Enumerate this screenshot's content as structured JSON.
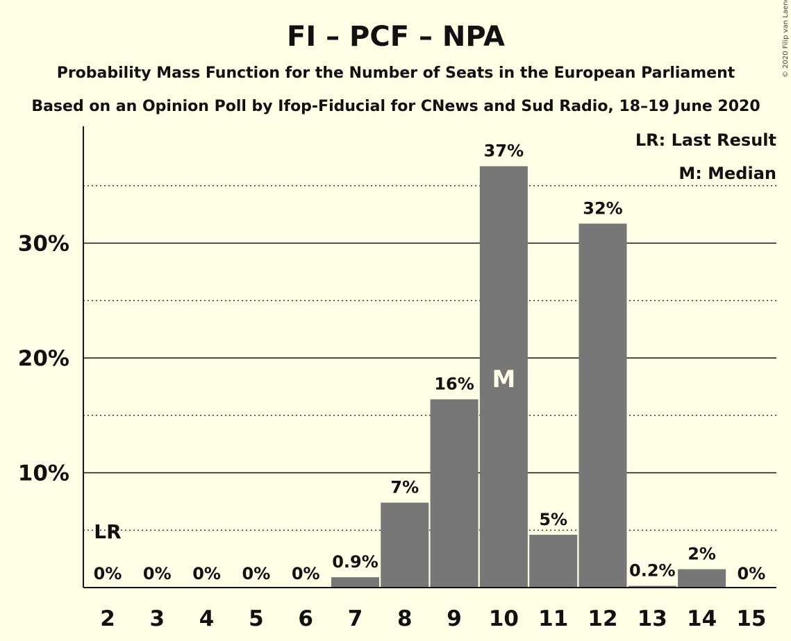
{
  "chart_data": {
    "type": "bar",
    "title": "FI – PCF – NPA",
    "subtitle": "Probability Mass Function for the Number of Seats in the European Parliament",
    "subtitle2": "Based on an Opinion Poll by Ifop-Fiducial for CNews and Sud Radio, 18–19 June 2020",
    "copyright": "© 2020 Filip van Laenen",
    "categories": [
      "2",
      "3",
      "4",
      "5",
      "6",
      "7",
      "8",
      "9",
      "10",
      "11",
      "12",
      "13",
      "14",
      "15"
    ],
    "values": [
      0,
      0,
      0,
      0,
      0,
      0.9,
      7.4,
      16.4,
      36.7,
      4.6,
      31.7,
      0.15,
      1.6,
      0
    ],
    "labels": [
      "0%",
      "0%",
      "0%",
      "0%",
      "0%",
      "0.9%",
      "7%",
      "16%",
      "37%",
      "5%",
      "32%",
      "0.2%",
      "2%",
      "0%"
    ],
    "ylim": [
      0,
      40
    ],
    "yticks": [
      {
        "value": 10,
        "label": "10%"
      },
      {
        "value": 20,
        "label": "20%"
      },
      {
        "value": 30,
        "label": "30%"
      }
    ],
    "last_result": {
      "category": "2",
      "marker": "LR"
    },
    "median": {
      "category": "10",
      "marker": "M"
    },
    "legend": {
      "position": "top-right",
      "lr_text": "LR: Last Result",
      "m_text": "M: Median"
    },
    "bar_color": "#777777",
    "background": "#fffde6",
    "grid": true
  }
}
